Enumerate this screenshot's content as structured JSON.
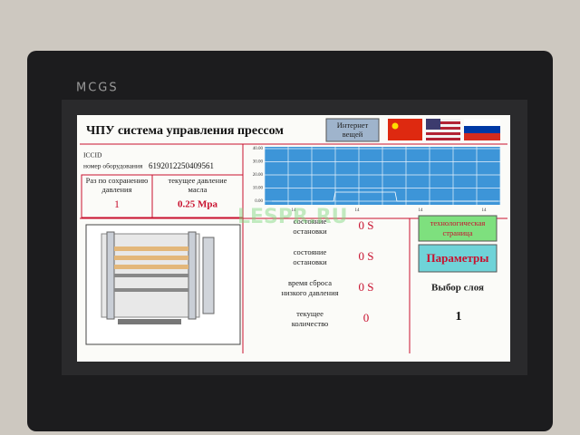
{
  "device": {
    "brand": "MCGS"
  },
  "header": {
    "title": "ЧПУ система управления прессом",
    "iot_button": [
      "Интернет",
      "вещей"
    ]
  },
  "info": {
    "iccid_label": "ICCID",
    "equipment_label": "номер оборудования",
    "equipment_number": "6192012250409561"
  },
  "cells": [
    {
      "label": [
        "Раз по сохранению",
        "давления"
      ],
      "value": "1"
    },
    {
      "label": [
        "текущее давление",
        "масла"
      ],
      "value": "0.25 Mpa"
    }
  ],
  "trend": {
    "yticks": [
      "40.00",
      "30.00",
      "20.00",
      "10.00",
      "0.00"
    ],
    "xticks": [
      "14",
      "14",
      "14",
      "14"
    ]
  },
  "status_rows": [
    {
      "label": [
        "состояние",
        "остановки"
      ],
      "value": "0 S"
    },
    {
      "label": [
        "состояние",
        "остановки"
      ],
      "value": "0 S"
    },
    {
      "label": [
        "время сброса",
        "низкого давления"
      ],
      "value": "0 S"
    },
    {
      "label": [
        "текущее",
        "количество"
      ],
      "value": "0"
    }
  ],
  "buttons": {
    "process_page": [
      "технологическая",
      "страница"
    ],
    "parameters": "Параметры"
  },
  "layer": {
    "label": "Выбор слоя",
    "value": "1"
  },
  "watermark": "LESPR.RU"
}
